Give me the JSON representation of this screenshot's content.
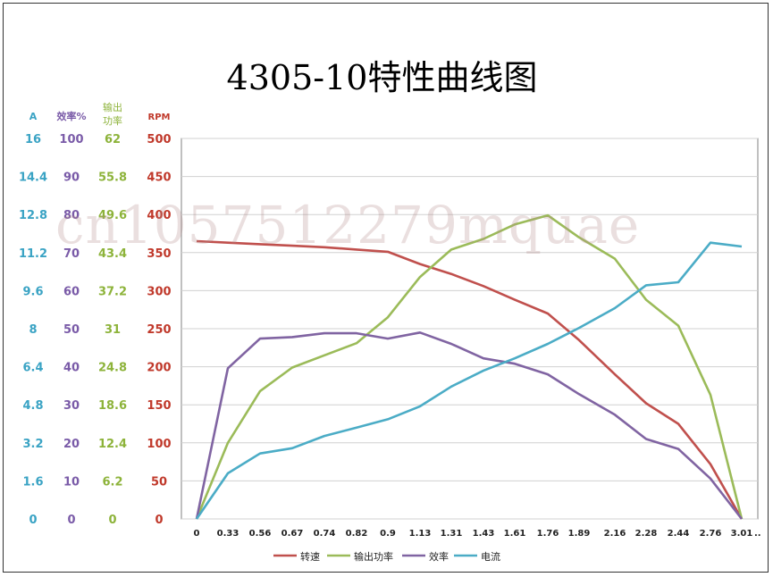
{
  "title": "4305-10特性曲线图",
  "watermark": "cn1057512279mquae",
  "axes": [
    {
      "key": "current",
      "label": "A",
      "color": "#3AA3C4",
      "ticks": [
        "16",
        "14.4",
        "12.8",
        "11.2",
        "9.6",
        "8",
        "6.4",
        "4.8",
        "3.2",
        "1.6",
        "0"
      ]
    },
    {
      "key": "efficiency",
      "label": "效率%",
      "color": "#7A5BA8",
      "ticks": [
        "100",
        "90",
        "80",
        "70",
        "60",
        "50",
        "40",
        "30",
        "20",
        "10",
        "0"
      ]
    },
    {
      "key": "power",
      "label": "输出功率",
      "color": "#8DB33A",
      "ticks": [
        "62",
        "55.8",
        "49.6",
        "43.4",
        "37.2",
        "31",
        "24.8",
        "18.6",
        "12.4",
        "6.2",
        "0"
      ]
    },
    {
      "key": "rpm",
      "label": "RPM",
      "color": "#C0392B",
      "ticks": [
        "500",
        "450",
        "400",
        "350",
        "300",
        "250",
        "200",
        "150",
        "100",
        "50",
        "0"
      ]
    }
  ],
  "chart_data": {
    "type": "line",
    "title": "4305-10特性曲线图",
    "x": [
      "0",
      "0.33",
      "0.56",
      "0.67",
      "0.74",
      "0.82",
      "0.9",
      "1.13",
      "1.31",
      "1.43",
      "1.61",
      "1.76",
      "1.89",
      "2.16",
      "2.28",
      "2.44",
      "2.76",
      "3.01"
    ],
    "x_trailing_label": "..",
    "ylim": [
      0,
      500
    ],
    "grid": true,
    "legend_position": "bottom",
    "series": [
      {
        "name": "转速",
        "color": "#C0504D",
        "values": [
          365,
          363,
          361,
          359,
          357,
          354,
          351,
          335,
          322,
          306,
          288,
          270,
          235,
          190,
          152,
          125,
          72,
          0
        ]
      },
      {
        "name": "输出功率",
        "color": "#9BBB59",
        "values": [
          0,
          100,
          168,
          199,
          215,
          231,
          265,
          318,
          354,
          368,
          387,
          399,
          370,
          342,
          288,
          254,
          163,
          0
        ]
      },
      {
        "name": "效率",
        "color": "#8064A2",
        "values": [
          0,
          198,
          237,
          239,
          244,
          244,
          237,
          245,
          230,
          211,
          204,
          190,
          164,
          137,
          105,
          92,
          53,
          0
        ]
      },
      {
        "name": "电流",
        "color": "#4BACC6",
        "values": [
          0,
          60,
          86,
          93,
          109,
          120,
          131,
          148,
          174,
          195,
          211,
          230,
          251,
          277,
          307,
          311,
          363,
          358
        ]
      }
    ]
  }
}
